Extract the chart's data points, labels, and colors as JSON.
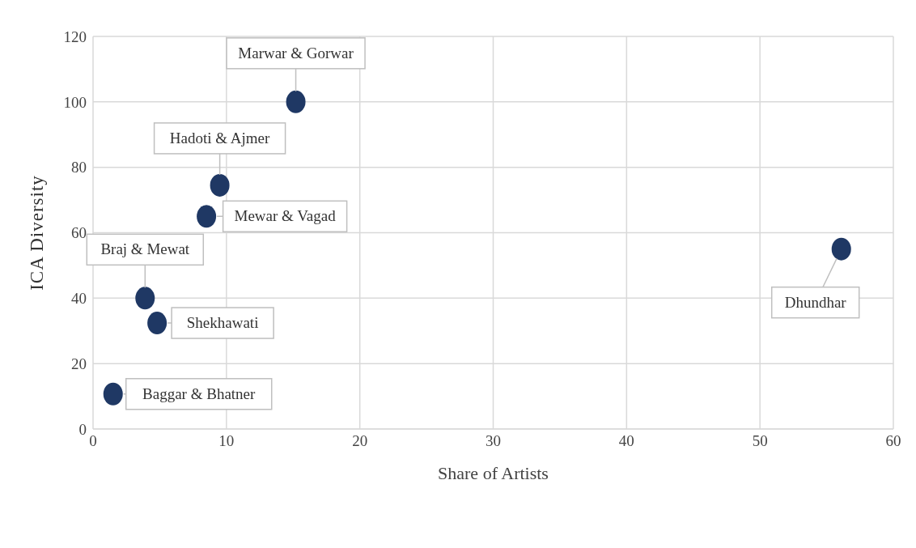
{
  "chart_data": {
    "type": "scatter",
    "xlabel": "Share of Artists",
    "ylabel": "ICA Diversity",
    "x": [
      15.2,
      9.5,
      8.5,
      3.9,
      4.8,
      1.5,
      56.1
    ],
    "values": [
      100,
      74.5,
      65,
      40,
      32.4,
      10.7,
      55
    ],
    "color": "#1f3864",
    "marker": "circle",
    "grid": true,
    "xlim": [
      0,
      60
    ],
    "xticks": [
      0,
      10,
      20,
      30,
      40,
      50,
      60
    ],
    "ylim": [
      0,
      120
    ],
    "yticks": [
      0,
      20,
      40,
      60,
      80,
      100,
      120
    ],
    "annotations": [
      {
        "text": "Marwar & Gorwar",
        "x": 15.2,
        "y": 100
      },
      {
        "text": "Hadoti & Ajmer",
        "x": 9.5,
        "y": 74.5
      },
      {
        "text": "Mewar & Vagad",
        "x": 8.5,
        "y": 65
      },
      {
        "text": "Braj & Mewat",
        "x": 3.9,
        "y": 40
      },
      {
        "text": "Shekhawati",
        "x": 4.8,
        "y": 32.4
      },
      {
        "text": "Baggar & Bhatner",
        "x": 1.5,
        "y": 10.7
      },
      {
        "text": "Dhundhar",
        "x": 56.1,
        "y": 55
      }
    ]
  }
}
